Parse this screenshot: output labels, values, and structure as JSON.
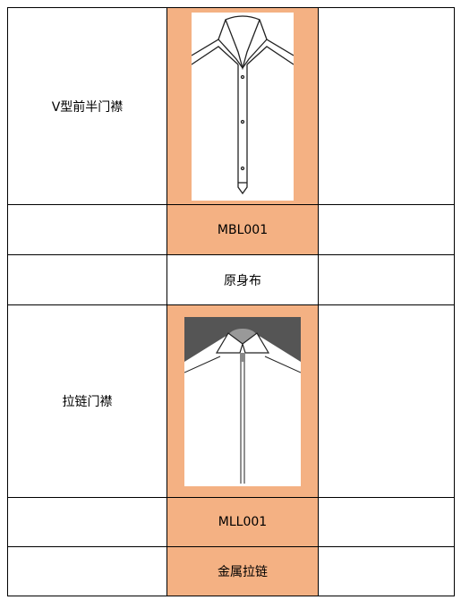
{
  "table": {
    "rows": [
      {
        "left": "V型前半门襟"
      },
      {
        "middle": "MBL001"
      },
      {
        "middle": "原身布"
      },
      {
        "left": "拉链门襟"
      },
      {
        "middle": "MLL001"
      },
      {
        "middle": "金属拉链"
      }
    ]
  }
}
